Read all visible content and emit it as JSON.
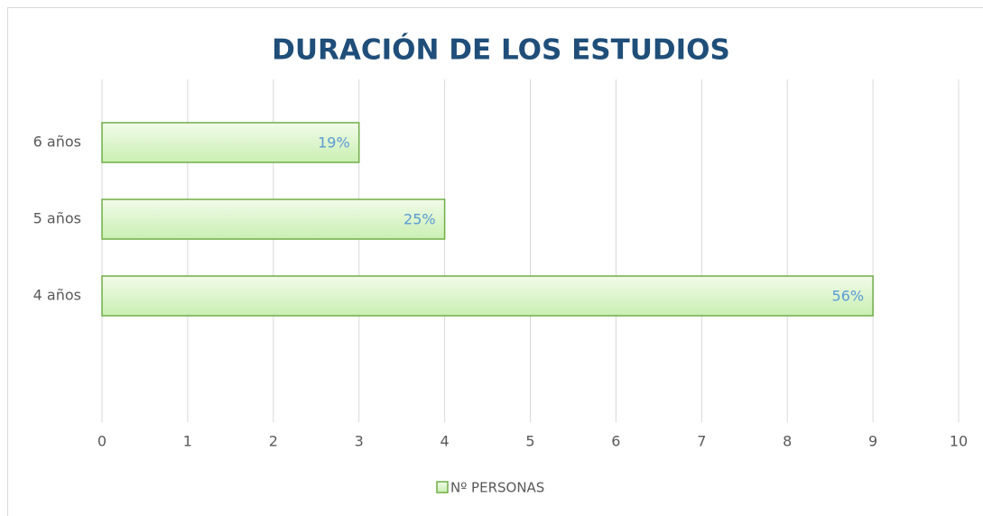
{
  "chart_data": {
    "type": "bar",
    "orientation": "horizontal",
    "title": "DURACIÓN DE LOS ESTUDIOS",
    "categories": [
      "6 años",
      "5 años",
      "4 años"
    ],
    "series": [
      {
        "name": "Nº PERSONAS",
        "color": "#70ad47",
        "values": [
          3,
          4,
          9
        ],
        "data_labels": [
          "19%",
          "25%",
          "56%"
        ]
      }
    ],
    "xlim": [
      0,
      10
    ],
    "xticks": [
      0,
      1,
      2,
      3,
      4,
      5,
      6,
      7,
      8,
      9,
      10
    ],
    "grid": true,
    "legend": "bottom"
  }
}
